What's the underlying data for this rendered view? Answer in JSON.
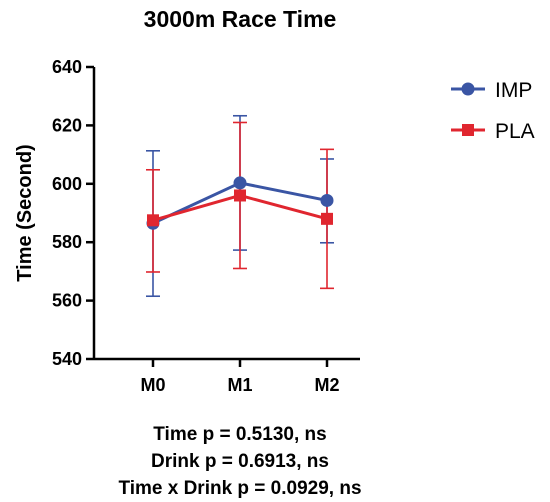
{
  "chart_data": {
    "type": "line",
    "title": "3000m Race Time",
    "xlabel": "",
    "ylabel": "Time (Second)",
    "categories": [
      "M0",
      "M1",
      "M2"
    ],
    "ylim": [
      540,
      640
    ],
    "yticks": [
      540,
      560,
      580,
      600,
      620,
      640
    ],
    "grid": false,
    "legend_position": "top-right",
    "series": [
      {
        "name": "IMP",
        "color": "#3a55a4",
        "marker": "circle",
        "values": [
          586.5,
          600.3,
          594.3
        ],
        "error_upper": [
          611.3,
          623.3,
          608.5
        ],
        "error_lower": [
          561.5,
          577.3,
          579.8
        ]
      },
      {
        "name": "PLA",
        "color": "#e0262f",
        "marker": "square",
        "values": [
          587.5,
          596.0,
          588.0
        ],
        "error_upper": [
          604.8,
          621.0,
          611.8
        ],
        "error_lower": [
          569.8,
          571.0,
          564.2
        ]
      }
    ],
    "annotations": [
      "Time p = 0.5130, ns",
      "Drink p = 0.6913, ns",
      "Time x Drink p = 0.0929, ns"
    ]
  }
}
